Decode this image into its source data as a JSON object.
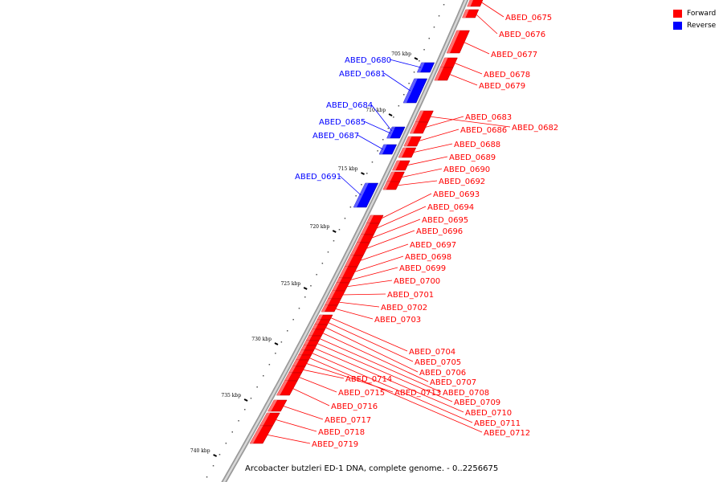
{
  "legend": {
    "forward_label": "Forward",
    "reverse_label": "Reverse",
    "forward_color": "#ff0000",
    "reverse_color": "#0000ff"
  },
  "caption": "Arcobacter butzleri ED-1 DNA, complete genome. - 0..2256675",
  "ticks": [
    "705 kbp",
    "710 kbp",
    "715 kbp",
    "720 kbp",
    "725 kbp",
    "730 kbp",
    "735 kbp",
    "740 kbp"
  ],
  "genes": [
    {
      "name": "ABED_0675",
      "strand": "forward"
    },
    {
      "name": "ABED_0676",
      "strand": "forward"
    },
    {
      "name": "ABED_0677",
      "strand": "forward"
    },
    {
      "name": "ABED_0678",
      "strand": "forward"
    },
    {
      "name": "ABED_0679",
      "strand": "forward"
    },
    {
      "name": "ABED_0680",
      "strand": "reverse"
    },
    {
      "name": "ABED_0681",
      "strand": "reverse"
    },
    {
      "name": "ABED_0682",
      "strand": "forward"
    },
    {
      "name": "ABED_0683",
      "strand": "forward"
    },
    {
      "name": "ABED_0684",
      "strand": "reverse"
    },
    {
      "name": "ABED_0685",
      "strand": "reverse"
    },
    {
      "name": "ABED_0686",
      "strand": "forward"
    },
    {
      "name": "ABED_0687",
      "strand": "reverse"
    },
    {
      "name": "ABED_0688",
      "strand": "forward"
    },
    {
      "name": "ABED_0689",
      "strand": "forward"
    },
    {
      "name": "ABED_0690",
      "strand": "forward"
    },
    {
      "name": "ABED_0691",
      "strand": "reverse"
    },
    {
      "name": "ABED_0692",
      "strand": "forward"
    },
    {
      "name": "ABED_0693",
      "strand": "forward"
    },
    {
      "name": "ABED_0694",
      "strand": "forward"
    },
    {
      "name": "ABED_0695",
      "strand": "forward"
    },
    {
      "name": "ABED_0696",
      "strand": "forward"
    },
    {
      "name": "ABED_0697",
      "strand": "forward"
    },
    {
      "name": "ABED_0698",
      "strand": "forward"
    },
    {
      "name": "ABED_0699",
      "strand": "forward"
    },
    {
      "name": "ABED_0700",
      "strand": "forward"
    },
    {
      "name": "ABED_0701",
      "strand": "forward"
    },
    {
      "name": "ABED_0702",
      "strand": "forward"
    },
    {
      "name": "ABED_0703",
      "strand": "forward"
    },
    {
      "name": "ABED_0704",
      "strand": "forward"
    },
    {
      "name": "ABED_0705",
      "strand": "forward"
    },
    {
      "name": "ABED_0706",
      "strand": "forward"
    },
    {
      "name": "ABED_0707",
      "strand": "forward"
    },
    {
      "name": "ABED_0708",
      "strand": "forward"
    },
    {
      "name": "ABED_0709",
      "strand": "forward"
    },
    {
      "name": "ABED_0710",
      "strand": "forward"
    },
    {
      "name": "ABED_0711",
      "strand": "forward"
    },
    {
      "name": "ABED_0712",
      "strand": "forward"
    },
    {
      "name": "ABED_0713",
      "strand": "forward"
    },
    {
      "name": "ABED_0714",
      "strand": "forward"
    },
    {
      "name": "ABED_0715",
      "strand": "forward"
    },
    {
      "name": "ABED_0716",
      "strand": "forward"
    },
    {
      "name": "ABED_0717",
      "strand": "forward"
    },
    {
      "name": "ABED_0718",
      "strand": "forward"
    },
    {
      "name": "ABED_0719",
      "strand": "forward"
    }
  ]
}
